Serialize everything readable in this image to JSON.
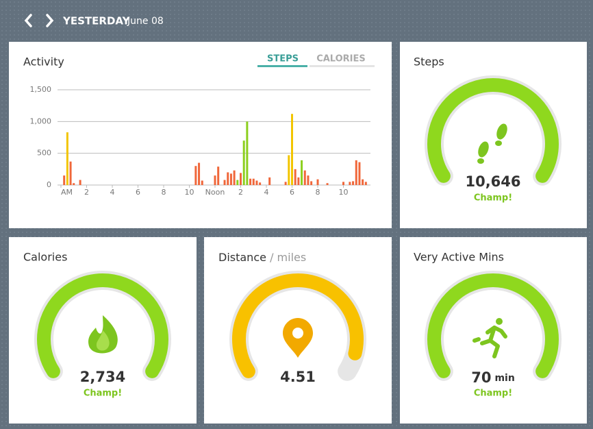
{
  "header": {
    "day": "YESTERDAY",
    "date": "June 08"
  },
  "tabs": [
    "STEPS",
    "CALORIES"
  ],
  "chart_data": {
    "type": "bar",
    "title": "Activity",
    "x": [
      0.25,
      0.5,
      0.75,
      1,
      1.5,
      10.5,
      10.75,
      11,
      12,
      12.25,
      12.75,
      13,
      13.25,
      13.5,
      13.75,
      14,
      14.25,
      14.5,
      14.75,
      15,
      15.25,
      15.5,
      16.25,
      17.5,
      17.75,
      18,
      18.25,
      18.5,
      18.75,
      19,
      19.25,
      19.5,
      20,
      20.75,
      22,
      22.5,
      22.75,
      23,
      23.25,
      23.5,
      23.75
    ],
    "values": [
      150,
      830,
      370,
      30,
      80,
      300,
      350,
      70,
      150,
      290,
      80,
      200,
      180,
      230,
      80,
      190,
      700,
      1000,
      100,
      100,
      70,
      40,
      120,
      50,
      470,
      1120,
      250,
      120,
      390,
      230,
      150,
      60,
      90,
      30,
      50,
      50,
      60,
      390,
      360,
      90,
      50
    ],
    "colors": [
      "#f0673a",
      "#f2c500",
      "#f0673a",
      "#f0673a",
      "#f0673a",
      "#f0673a",
      "#f0673a",
      "#f0673a",
      "#f0673a",
      "#f0673a",
      "#f0673a",
      "#f0673a",
      "#f0673a",
      "#f0673a",
      "#8ccf1e",
      "#f0673a",
      "#8ccf1e",
      "#8ccf1e",
      "#f0673a",
      "#f0673a",
      "#f0673a",
      "#f0673a",
      "#f0673a",
      "#f0673a",
      "#f2c500",
      "#f2c500",
      "#f0673a",
      "#f0673a",
      "#8ccf1e",
      "#f0673a",
      "#f0673a",
      "#f0673a",
      "#f0673a",
      "#f0673a",
      "#f0673a",
      "#f0673a",
      "#f0673a",
      "#f0673a",
      "#f0673a",
      "#f0673a",
      "#f0673a"
    ],
    "xlim": [
      0,
      24
    ],
    "xticks": [
      {
        "value": 0,
        "label": "AM"
      },
      2,
      4,
      6,
      8,
      10,
      {
        "value": 12,
        "label": "Noon"
      },
      {
        "value": 14,
        "label": "2"
      },
      {
        "value": 16,
        "label": "4"
      },
      {
        "value": 18,
        "label": "6"
      },
      {
        "value": 20,
        "label": "8"
      },
      {
        "value": 22,
        "label": "10"
      }
    ],
    "ylim": [
      0,
      1500
    ],
    "yticks": [
      0,
      500,
      {
        "value": 1000,
        "label": "1,000"
      },
      {
        "value": 1500,
        "label": "1,500"
      }
    ],
    "grid": true
  },
  "tiles": [
    {
      "title": "Steps",
      "value": "10,646",
      "badge": "Champ!"
    },
    {
      "title": "Calories",
      "value": "2,734",
      "badge": "Champ!"
    },
    {
      "title": "Distance",
      "unit": "/ miles",
      "value": "4.51"
    },
    {
      "title": "Very Active Mins",
      "value": "70",
      "unit": "min",
      "badge": "Champ!"
    }
  ]
}
